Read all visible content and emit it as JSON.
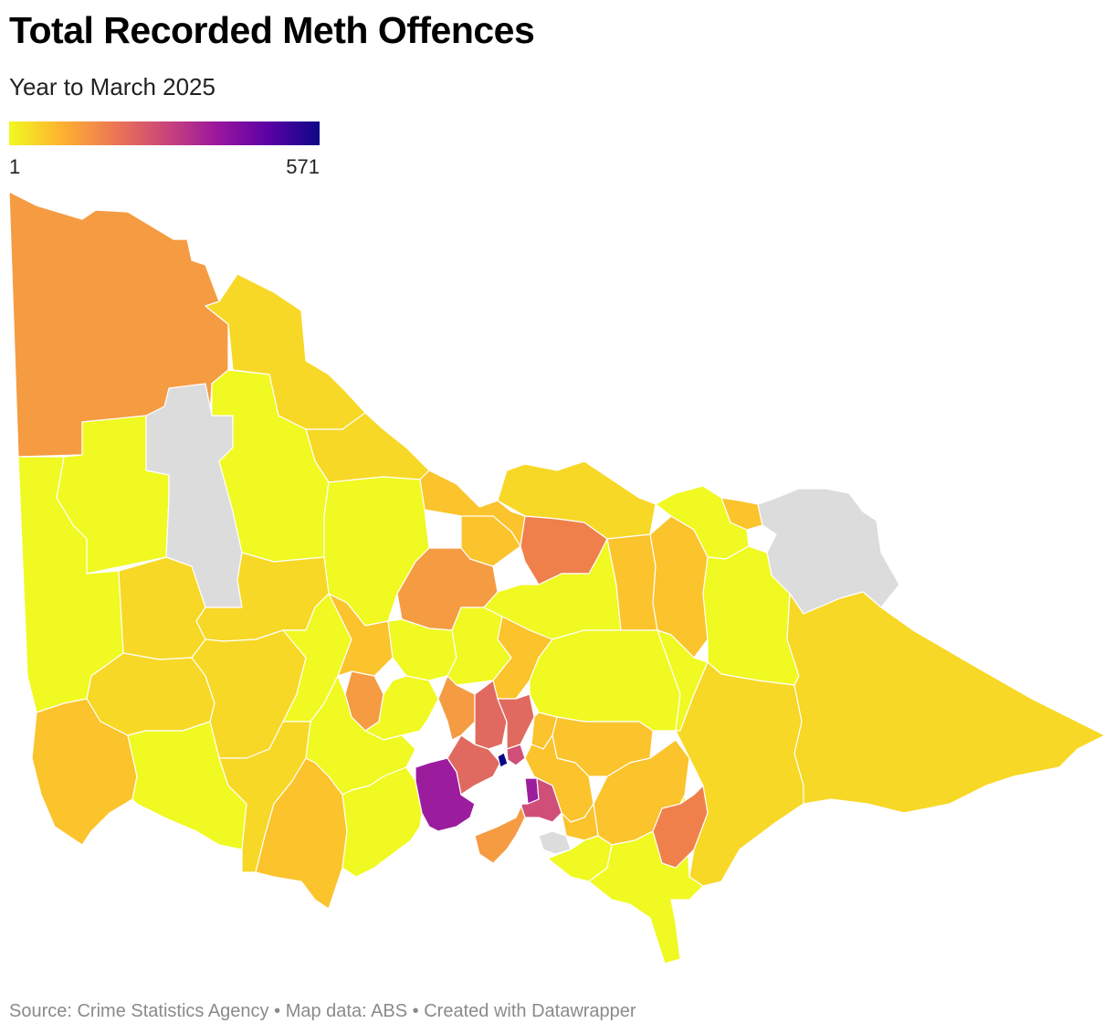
{
  "title": "Total Recorded Meth Offences",
  "subtitle": "Year to March 2025",
  "legend": {
    "min": "1",
    "max": "571",
    "gradient": [
      "#f0f921",
      "#fdb32f",
      "#ed7953",
      "#cb4778",
      "#9c179e",
      "#5c01a6",
      "#0d0887"
    ],
    "no_data_color": "#dcdcdc"
  },
  "footer": {
    "source": "Source: Crime Statistics Agency",
    "map_data": "Map data: ABS",
    "credit": "Created with Datawrapper",
    "separator": " • "
  },
  "map": {
    "type": "choropleth",
    "colors": {
      "low": "#f0f921",
      "low_mid": "#f7d826",
      "mid": "#fbc32c",
      "mid_high": "#f59b42",
      "high": "#f0804b",
      "higher": "#e06a5f",
      "very_high": "#d04f79",
      "top": "#9c1c9e",
      "max": "#0d0887",
      "no_data": "#dcdcdc"
    }
  }
}
